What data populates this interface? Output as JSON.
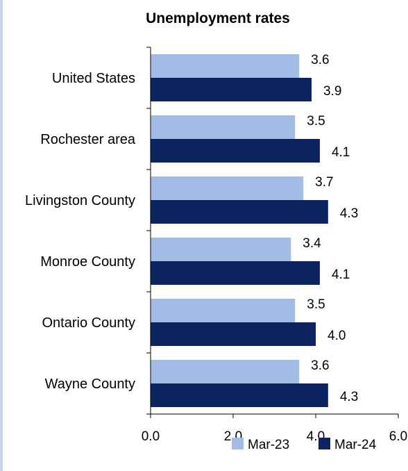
{
  "chart_data": {
    "type": "bar",
    "orientation": "horizontal",
    "title": "Unemployment rates",
    "xlabel": "",
    "ylabel": "",
    "categories": [
      "United States",
      "Rochester area",
      "Livingston County",
      "Monroe County",
      "Ontario County",
      "Wayne County"
    ],
    "series": [
      {
        "name": "Mar-23",
        "color": "#a3bce6",
        "values": [
          3.6,
          3.5,
          3.7,
          3.4,
          3.5,
          3.6
        ],
        "labels": [
          "3.6",
          "3.5",
          "3.7",
          "3.4",
          "3.5",
          "3.6"
        ]
      },
      {
        "name": "Mar-24",
        "color": "#0c2461",
        "values": [
          3.9,
          4.1,
          4.3,
          4.1,
          4.0,
          4.3
        ],
        "labels": [
          "3.9",
          "4.1",
          "4.3",
          "4.1",
          "4.0",
          "4.3"
        ]
      }
    ],
    "xlim": [
      0,
      6
    ],
    "xticks": [
      0,
      2,
      4,
      6
    ],
    "xtick_labels": [
      "0.0",
      "2.0",
      "4.0",
      "6.0"
    ],
    "grid": false,
    "legend_position": "bottom-right"
  }
}
